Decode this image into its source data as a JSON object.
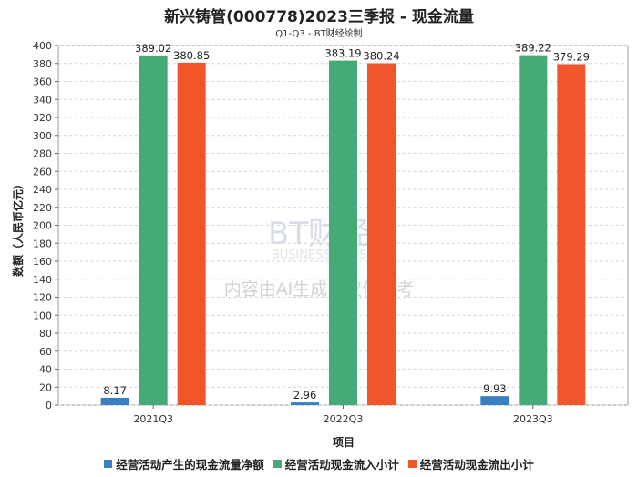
{
  "header": {
    "title": "新兴铸管(000778)2023三季报 - 现金流量",
    "subtitle": "Q1-Q3 - BT财经绘制"
  },
  "watermark": {
    "brand": "BT财经",
    "brand_en": "BUSINESSTIMES",
    "disclaimer": "内容由AI生成，仅供参考"
  },
  "chart_data": {
    "type": "bar",
    "categories": [
      "2021Q3",
      "2022Q3",
      "2023Q3"
    ],
    "series": [
      {
        "name": "经营活动产生的现金流量净额",
        "values": [
          8.17,
          2.96,
          9.93
        ],
        "color": "#3a7fc1"
      },
      {
        "name": "经营活动现金流入小计",
        "values": [
          389.02,
          383.19,
          389.22
        ],
        "color": "#44aa77"
      },
      {
        "name": "经营活动现金流出小计",
        "values": [
          380.85,
          380.24,
          379.29
        ],
        "color": "#f0562a"
      }
    ],
    "xlabel": "项目",
    "ylabel": "数额（人民币亿元）",
    "ylim": [
      0,
      400
    ],
    "yticks": [
      0,
      20,
      40,
      60,
      80,
      100,
      120,
      140,
      160,
      180,
      200,
      220,
      240,
      260,
      280,
      300,
      320,
      340,
      360,
      380,
      400
    ],
    "grid": true,
    "legend_position": "bottom"
  }
}
